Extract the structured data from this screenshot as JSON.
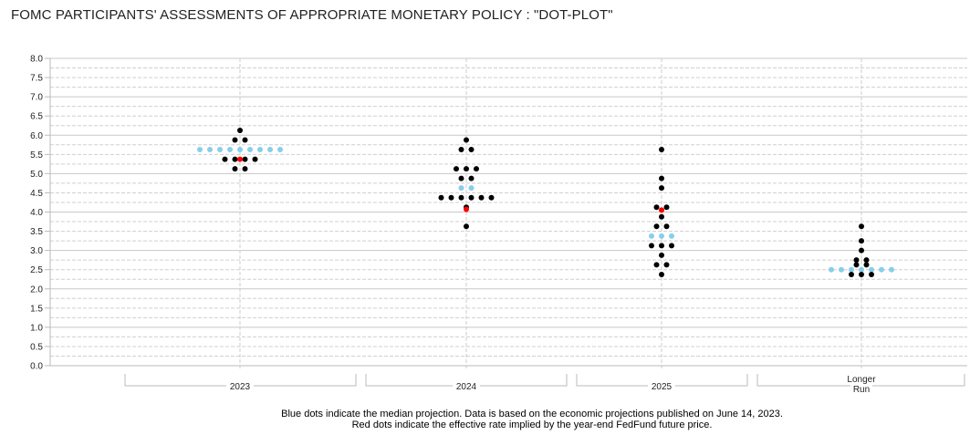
{
  "chart_data": {
    "type": "scatter",
    "title": "FOMC PARTICIPANTS' ASSESSMENTS OF APPROPRIATE MONETARY POLICY : \"DOT-PLOT\"",
    "ylim": [
      0,
      8
    ],
    "yticks": [
      "0.0",
      "0.5",
      "1.0",
      "1.5",
      "2.0",
      "2.5",
      "3.0",
      "3.5",
      "4.0",
      "4.5",
      "5.0",
      "5.5",
      "6.0",
      "6.5",
      "7.0",
      "7.5",
      "8.0"
    ],
    "categories": [
      "2023",
      "2024",
      "2025",
      "Longer Run"
    ],
    "category_label_lines": [
      [
        "2023"
      ],
      [
        "2024"
      ],
      [
        "2025"
      ],
      [
        "Longer",
        "Run"
      ]
    ],
    "participant_dots": [
      [
        [
          6.125,
          1
        ],
        [
          5.875,
          2
        ],
        [
          5.375,
          4
        ],
        [
          5.125,
          2
        ]
      ],
      [
        [
          5.875,
          1
        ],
        [
          5.625,
          2
        ],
        [
          5.125,
          3
        ],
        [
          4.875,
          2
        ],
        [
          4.375,
          6
        ],
        [
          4.125,
          1
        ],
        [
          3.625,
          1
        ]
      ],
      [
        [
          5.625,
          1
        ],
        [
          4.875,
          1
        ],
        [
          4.625,
          1
        ],
        [
          4.125,
          2
        ],
        [
          3.875,
          1
        ],
        [
          3.625,
          2
        ],
        [
          3.125,
          3
        ],
        [
          2.875,
          1
        ],
        [
          2.625,
          2
        ],
        [
          2.375,
          1
        ]
      ],
      [
        [
          3.625,
          1
        ],
        [
          3.25,
          1
        ],
        [
          3.0,
          1
        ],
        [
          2.75,
          2
        ],
        [
          2.625,
          2
        ],
        [
          2.375,
          3
        ]
      ]
    ],
    "median_dots": [
      [
        5.625,
        9
      ],
      [
        4.625,
        2
      ],
      [
        3.375,
        3
      ],
      [
        2.5,
        7
      ]
    ],
    "futures_dots": [
      5.375,
      4.07,
      4.05,
      null
    ],
    "colors": {
      "participant": "#000000",
      "median": "#87ceeb",
      "futures": "#ff0000"
    }
  },
  "notes": {
    "line1": "Blue dots indicate the median projection. Data is based on the economic projections published on June 14, 2023.",
    "line2": "Red dots indicate the effective rate implied by the year-end FedFund future price."
  }
}
